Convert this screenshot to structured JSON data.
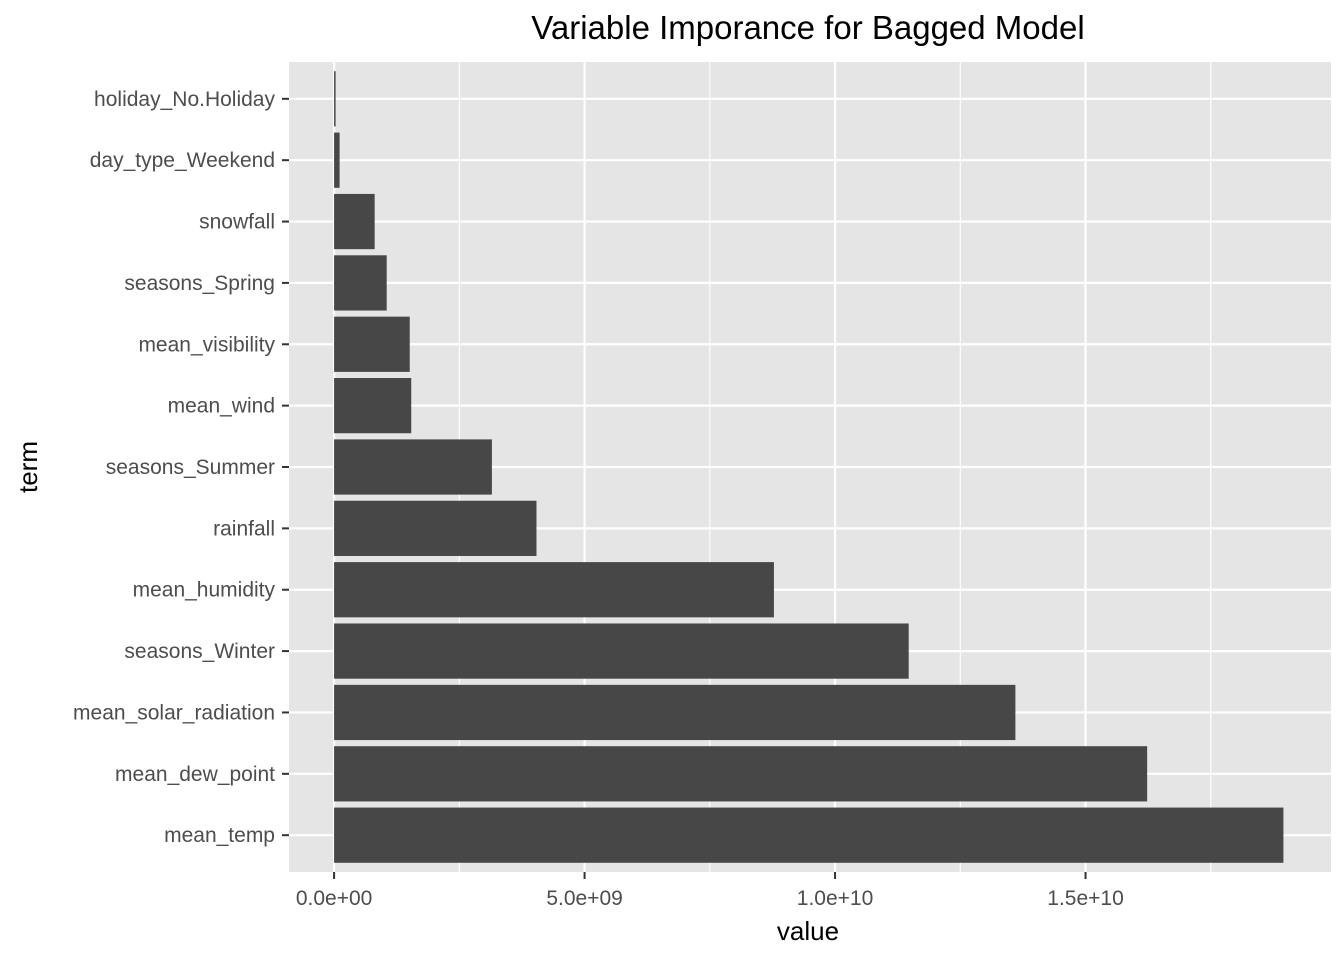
{
  "chart_data": {
    "type": "bar",
    "orientation": "horizontal",
    "title": "Variable Imporance for Bagged Model",
    "xlabel": "value",
    "ylabel": "term",
    "categories": [
      "mean_temp",
      "mean_dew_point",
      "mean_solar_radiation",
      "seasons_Winter",
      "mean_humidity",
      "rainfall",
      "seasons_Summer",
      "mean_wind",
      "mean_visibility",
      "seasons_Spring",
      "snowfall",
      "day_type_Weekend",
      "holiday_No.Holiday"
    ],
    "values": [
      18950000000,
      16230000000,
      13600000000,
      11470000000,
      8780000000,
      4040000000,
      3150000000,
      1540000000,
      1510000000,
      1050000000,
      810000000,
      110000000,
      20000000
    ],
    "xlim": [
      -900000000,
      19900000000
    ],
    "x_ticks": [
      0,
      5000000000,
      10000000000,
      15000000000
    ],
    "x_tick_labels": [
      "0.0e+00",
      "5.0e+09",
      "1.0e+10",
      "1.5e+10"
    ],
    "grid": true,
    "legend": "none",
    "colors": {
      "bar": "#474747",
      "panel": "#e5e5e5",
      "grid_major": "#ffffff",
      "tick_label": "#4d4d4d",
      "tick_mark": "#333333"
    }
  }
}
